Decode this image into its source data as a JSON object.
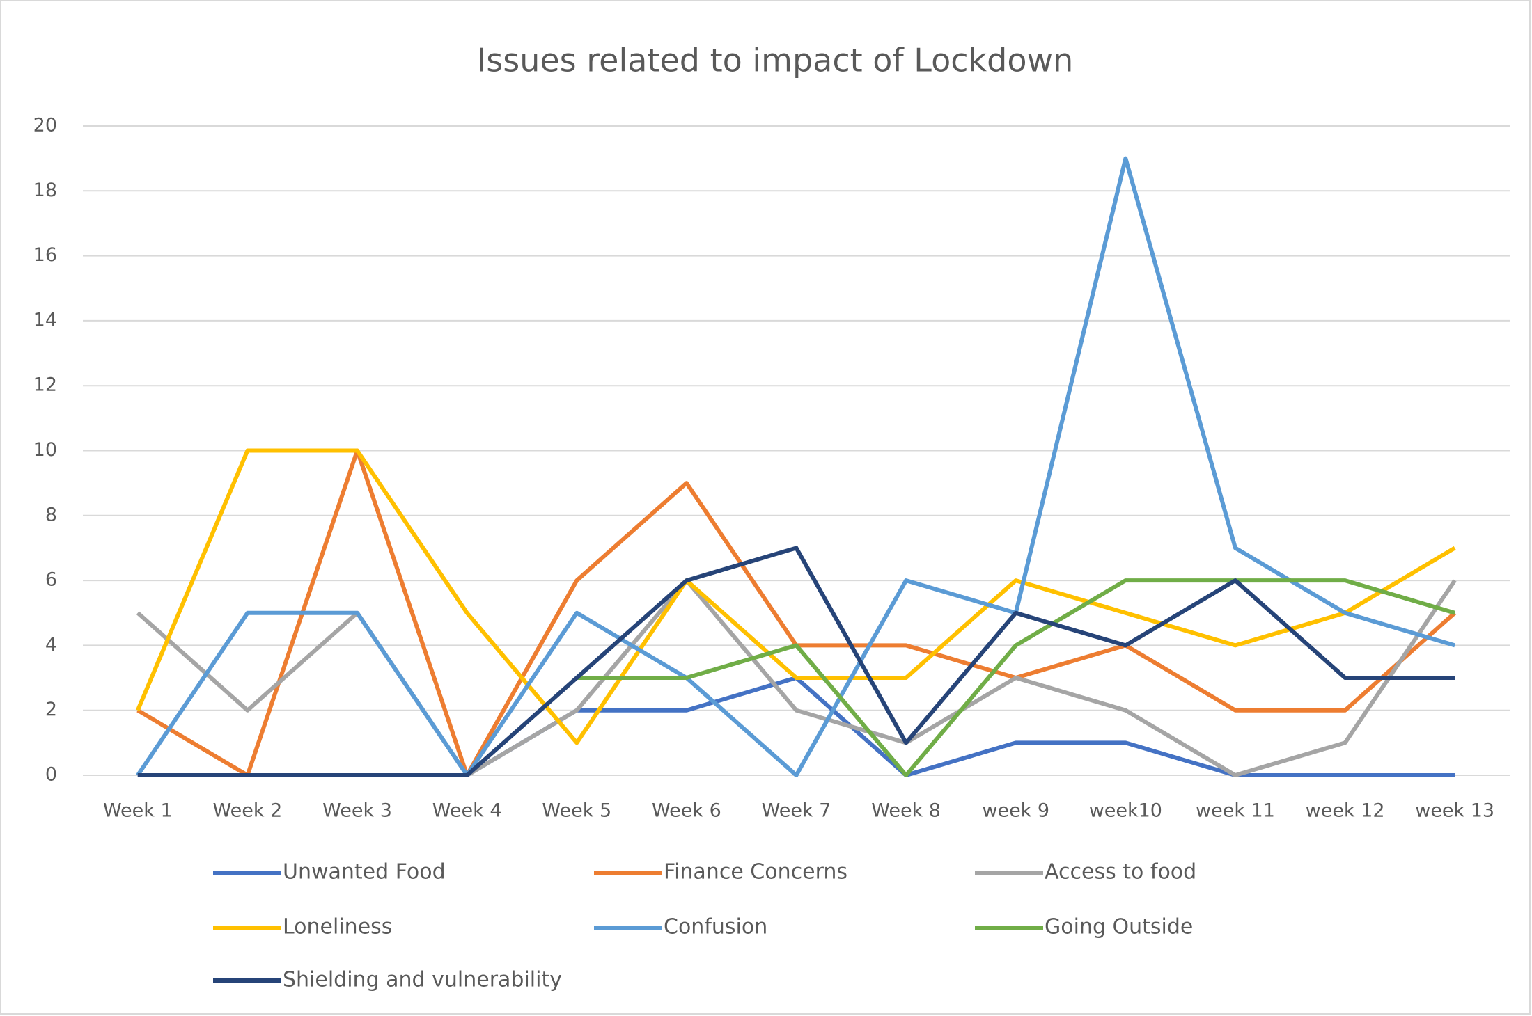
{
  "chart_data": {
    "type": "line",
    "title": "Issues related to impact of Lockdown",
    "categories": [
      "Week 1",
      "Week 2",
      "Week 3",
      "Week 4",
      "Week 5",
      "Week 6",
      "Week 7",
      "Week 8",
      "week 9",
      "week10",
      "week 11",
      "week 12",
      "week 13"
    ],
    "series": [
      {
        "name": "Unwanted Food",
        "color": "#4472c4",
        "values": [
          0,
          0,
          0,
          0,
          2,
          2,
          3,
          0,
          1,
          1,
          0,
          0,
          0
        ]
      },
      {
        "name": "Finance Concerns",
        "color": "#ed7d31",
        "values": [
          2,
          0,
          10,
          0,
          6,
          9,
          4,
          4,
          3,
          4,
          2,
          2,
          5
        ]
      },
      {
        "name": "Access to food",
        "color": "#a5a5a5",
        "values": [
          5,
          2,
          5,
          0,
          2,
          6,
          2,
          1,
          3,
          2,
          0,
          1,
          6
        ]
      },
      {
        "name": "Loneliness",
        "color": "#ffc000",
        "values": [
          2,
          10,
          10,
          5,
          1,
          6,
          3,
          3,
          6,
          5,
          4,
          5,
          7
        ]
      },
      {
        "name": "Confusion",
        "color": "#5b9bd5",
        "values": [
          0,
          5,
          5,
          0,
          5,
          3,
          0,
          6,
          5,
          19,
          7,
          5,
          4
        ]
      },
      {
        "name": "Going Outside",
        "color": "#70ad47",
        "values": [
          null,
          null,
          null,
          null,
          3,
          3,
          4,
          0,
          4,
          6,
          6,
          6,
          5
        ]
      },
      {
        "name": "Shielding and vulnerability",
        "color": "#264478",
        "values": [
          0,
          0,
          0,
          0,
          3,
          6,
          7,
          1,
          5,
          4,
          6,
          3,
          3
        ]
      }
    ],
    "ylim": [
      0,
      20
    ],
    "yticks": [
      0,
      2,
      4,
      6,
      8,
      10,
      12,
      14,
      16,
      18,
      20
    ],
    "grid": true,
    "legend": "bottom"
  }
}
